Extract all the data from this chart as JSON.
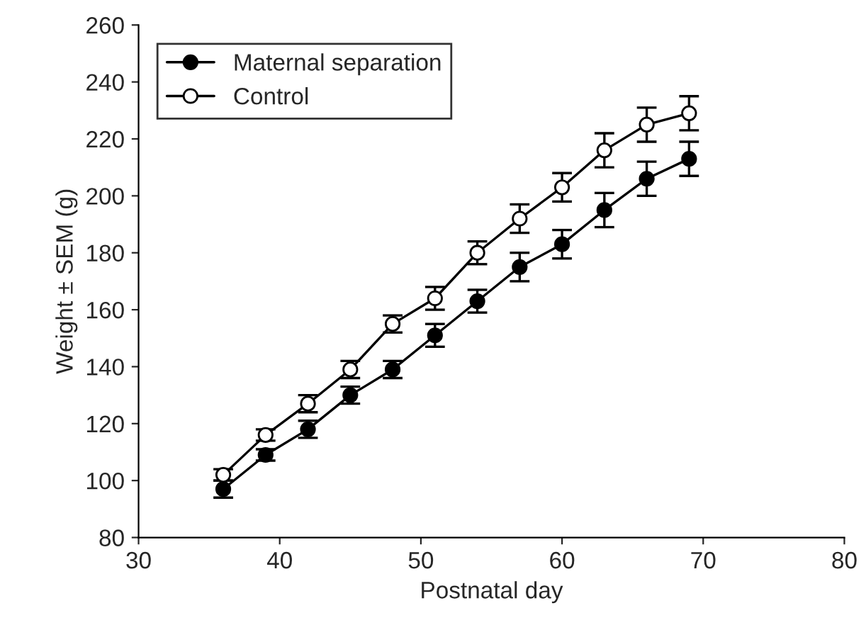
{
  "chart_data": {
    "type": "line",
    "xlabel": "Postnatal day",
    "ylabel": "Weight ± SEM (g)",
    "x": [
      36,
      39,
      42,
      45,
      48,
      51,
      54,
      57,
      60,
      63,
      66,
      69
    ],
    "series": [
      {
        "name": "Maternal separation",
        "color": "#000000",
        "values": [
          97,
          109,
          118,
          130,
          139,
          151,
          163,
          175,
          183,
          195,
          206,
          213
        ],
        "errors": [
          3,
          2,
          3,
          3,
          3,
          4,
          4,
          5,
          5,
          6,
          6,
          6
        ]
      },
      {
        "name": "Control",
        "color": "#ffffff",
        "values": [
          102,
          116,
          127,
          139,
          155,
          164,
          180,
          192,
          203,
          216,
          225,
          229
        ],
        "errors": [
          2,
          2,
          3,
          3,
          3,
          4,
          4,
          5,
          5,
          6,
          6,
          6
        ]
      }
    ],
    "xlim": [
      30,
      80
    ],
    "xticks": [
      30,
      40,
      50,
      60,
      70,
      80
    ],
    "ylim": [
      80,
      260
    ],
    "yticks": [
      80,
      100,
      120,
      140,
      160,
      180,
      200,
      220,
      240,
      260
    ],
    "grid": false,
    "legend": "top left",
    "marker": "circle",
    "line_style": "solid"
  }
}
